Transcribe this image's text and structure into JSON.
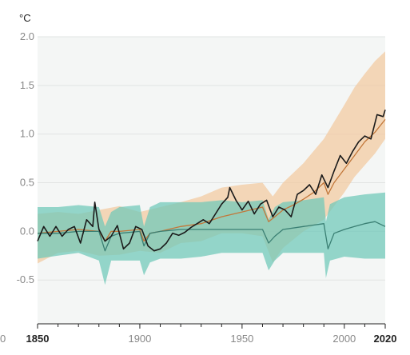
{
  "chart_data": {
    "type": "line",
    "title": "",
    "y_unit": "°C",
    "xlim": [
      1850,
      2020
    ],
    "ylim": [
      -0.95,
      2.0
    ],
    "x_ticks": [
      {
        "value": 1850,
        "label": "1850",
        "bold": true
      },
      {
        "value": 1900,
        "label": "1900",
        "bold": false
      },
      {
        "value": 1950,
        "label": "1950",
        "bold": false
      },
      {
        "value": 2000,
        "label": "2000",
        "bold": false
      },
      {
        "value": 2020,
        "label": "2020",
        "bold": true
      }
    ],
    "y_ticks": [
      {
        "value": 2.0,
        "label": "2.0"
      },
      {
        "value": 1.5,
        "label": "1.5"
      },
      {
        "value": 1.0,
        "label": "1.0"
      },
      {
        "value": 0.5,
        "label": "0.5"
      },
      {
        "value": 0.0,
        "label": "0.0"
      },
      {
        "value": -0.5,
        "label": "-0.5"
      }
    ],
    "grid": true,
    "legend": "none",
    "series": [
      {
        "key": "human_and_natural_range",
        "kind": "band",
        "color": "#f2c9a0",
        "x": [
          1850,
          1860,
          1870,
          1880,
          1890,
          1900,
          1910,
          1920,
          1930,
          1940,
          1950,
          1960,
          1965,
          1970,
          1980,
          1990,
          2000,
          2005,
          2010,
          2015,
          2020
        ],
        "lower": [
          -0.33,
          -0.22,
          -0.2,
          -0.25,
          -0.24,
          -0.2,
          -0.22,
          -0.12,
          -0.1,
          -0.02,
          -0.02,
          -0.05,
          -0.32,
          -0.17,
          0.0,
          0.12,
          0.4,
          0.56,
          0.68,
          0.8,
          0.95
        ],
        "upper": [
          0.18,
          0.2,
          0.18,
          0.22,
          0.26,
          0.2,
          0.25,
          0.3,
          0.36,
          0.45,
          0.48,
          0.5,
          0.36,
          0.5,
          0.7,
          0.95,
          1.3,
          1.48,
          1.62,
          1.75,
          1.85
        ]
      },
      {
        "key": "natural_only_range",
        "kind": "band",
        "color": "#6dc8b8",
        "x": [
          1850,
          1860,
          1870,
          1880,
          1883,
          1886,
          1890,
          1900,
          1902,
          1905,
          1910,
          1920,
          1930,
          1940,
          1950,
          1960,
          1963,
          1966,
          1970,
          1980,
          1990,
          1991,
          1993,
          2000,
          2010,
          2020
        ],
        "lower": [
          -0.28,
          -0.25,
          -0.22,
          -0.3,
          -0.55,
          -0.3,
          -0.3,
          -0.3,
          -0.45,
          -0.32,
          -0.28,
          -0.28,
          -0.26,
          -0.22,
          -0.22,
          -0.22,
          -0.4,
          -0.3,
          -0.22,
          -0.22,
          -0.22,
          -0.48,
          -0.3,
          -0.26,
          -0.28,
          -0.28
        ],
        "upper": [
          0.25,
          0.25,
          0.27,
          0.25,
          0.05,
          0.2,
          0.25,
          0.27,
          0.05,
          0.25,
          0.3,
          0.3,
          0.3,
          0.32,
          0.3,
          0.32,
          0.12,
          0.25,
          0.3,
          0.32,
          0.35,
          0.1,
          0.28,
          0.35,
          0.38,
          0.4
        ]
      },
      {
        "key": "human_and_natural_mean",
        "kind": "line",
        "color": "#c2773a",
        "x": [
          1850,
          1860,
          1870,
          1880,
          1883,
          1886,
          1890,
          1900,
          1902,
          1905,
          1910,
          1920,
          1930,
          1940,
          1950,
          1960,
          1963,
          1966,
          1970,
          1975,
          1980,
          1985,
          1990,
          1992,
          1995,
          2000,
          2005,
          2010,
          2015,
          2020
        ],
        "y": [
          -0.02,
          0.0,
          0.02,
          0.0,
          -0.1,
          0.0,
          0.0,
          0.02,
          -0.1,
          -0.02,
          0.0,
          0.05,
          0.08,
          0.15,
          0.2,
          0.25,
          0.1,
          0.15,
          0.22,
          0.27,
          0.33,
          0.4,
          0.5,
          0.38,
          0.5,
          0.64,
          0.78,
          0.92,
          1.02,
          1.15
        ]
      },
      {
        "key": "natural_only_mean",
        "kind": "line",
        "color": "#3a7f73",
        "x": [
          1850,
          1860,
          1870,
          1880,
          1883,
          1886,
          1890,
          1900,
          1902,
          1905,
          1910,
          1920,
          1930,
          1940,
          1950,
          1960,
          1963,
          1966,
          1970,
          1980,
          1990,
          1992,
          1995,
          2000,
          2005,
          2010,
          2015,
          2020
        ],
        "y": [
          -0.02,
          -0.02,
          0.0,
          0.0,
          -0.2,
          -0.05,
          -0.02,
          0.0,
          -0.15,
          -0.02,
          0.0,
          0.02,
          0.02,
          0.02,
          0.02,
          0.02,
          -0.12,
          -0.05,
          0.02,
          0.05,
          0.08,
          -0.18,
          -0.02,
          0.02,
          0.05,
          0.08,
          0.1,
          0.05
        ]
      },
      {
        "key": "observed",
        "kind": "line",
        "color": "#1a1a1a",
        "x": [
          1850,
          1853,
          1856,
          1859,
          1862,
          1865,
          1868,
          1871,
          1874,
          1877,
          1878,
          1880,
          1883,
          1886,
          1889,
          1892,
          1895,
          1898,
          1901,
          1904,
          1907,
          1910,
          1913,
          1916,
          1919,
          1922,
          1925,
          1928,
          1931,
          1934,
          1937,
          1940,
          1943,
          1944,
          1947,
          1950,
          1953,
          1956,
          1959,
          1962,
          1965,
          1968,
          1971,
          1974,
          1977,
          1980,
          1983,
          1986,
          1989,
          1992,
          1995,
          1998,
          2001,
          2004,
          2007,
          2010,
          2013,
          2016,
          2019,
          2020
        ],
        "y": [
          -0.1,
          0.05,
          -0.05,
          0.05,
          -0.05,
          0.02,
          0.05,
          -0.12,
          0.12,
          0.05,
          0.3,
          0.02,
          -0.1,
          -0.05,
          0.06,
          -0.18,
          -0.12,
          0.05,
          0.02,
          -0.15,
          -0.2,
          -0.18,
          -0.12,
          -0.02,
          -0.04,
          -0.01,
          0.04,
          0.08,
          0.12,
          0.08,
          0.18,
          0.28,
          0.35,
          0.45,
          0.32,
          0.22,
          0.31,
          0.18,
          0.28,
          0.32,
          0.15,
          0.25,
          0.22,
          0.15,
          0.38,
          0.42,
          0.48,
          0.38,
          0.58,
          0.45,
          0.62,
          0.78,
          0.7,
          0.82,
          0.92,
          0.98,
          0.95,
          1.2,
          1.18,
          1.25
        ]
      }
    ]
  }
}
